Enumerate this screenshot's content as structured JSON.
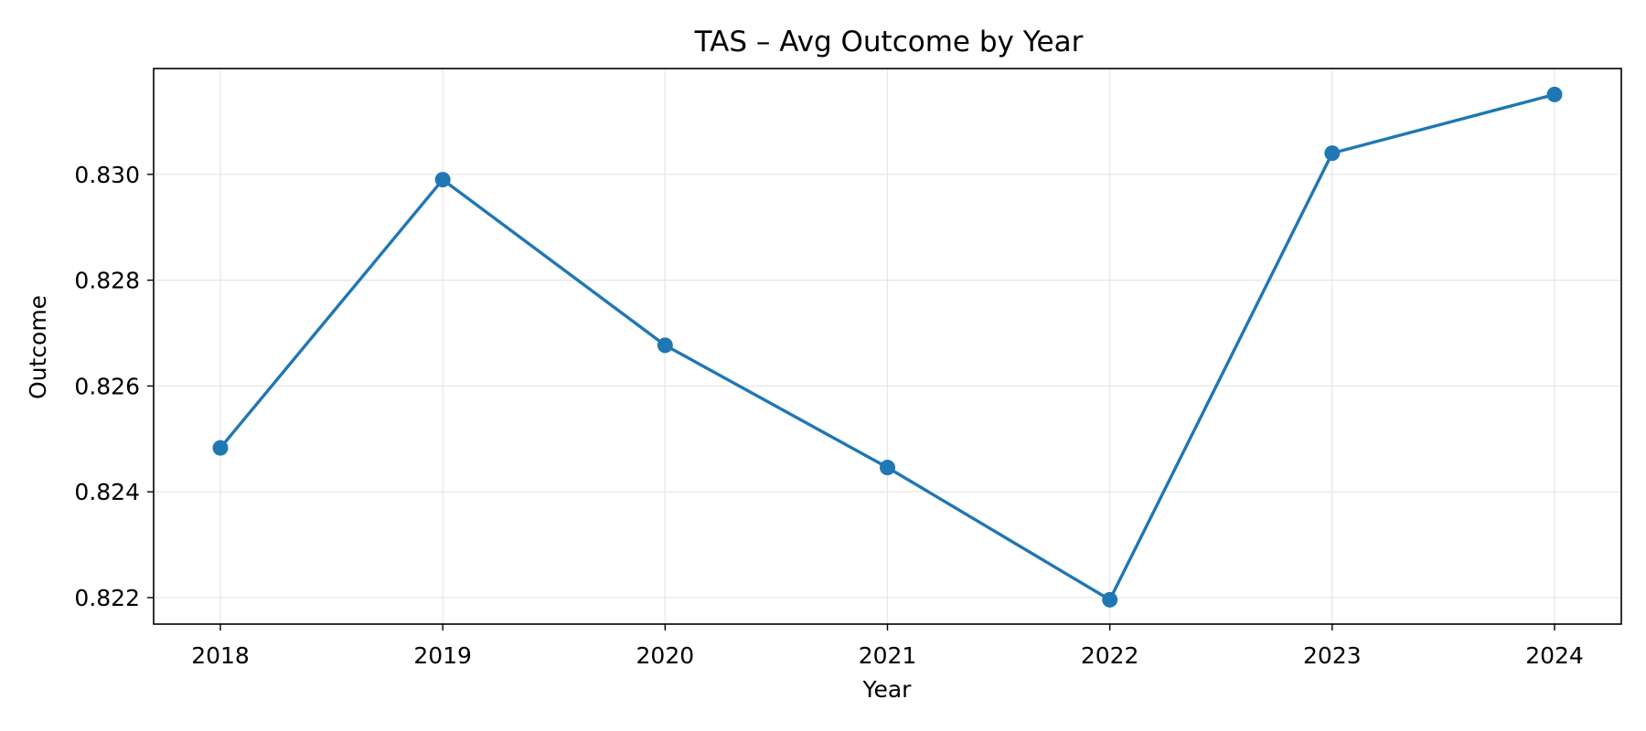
{
  "chart_data": {
    "type": "line",
    "title": "TAS – Avg Outcome by Year",
    "xlabel": "Year",
    "ylabel": "Outcome",
    "x": [
      "2018",
      "2019",
      "2020",
      "2021",
      "2022",
      "2023",
      "2024"
    ],
    "series": [
      {
        "values": [
          0.82483,
          0.8299,
          0.82677,
          0.82446,
          0.82196,
          0.8304,
          0.83151
        ]
      }
    ],
    "ylim": [
      0.8215,
      0.832
    ],
    "yticks": [
      0.822,
      0.824,
      0.826,
      0.828,
      0.83
    ],
    "ytick_labels": [
      "0.822",
      "0.824",
      "0.826",
      "0.828",
      "0.830"
    ],
    "grid": true,
    "legend": "none",
    "markers": true,
    "colors": {
      "series": "#1f77b4"
    }
  }
}
